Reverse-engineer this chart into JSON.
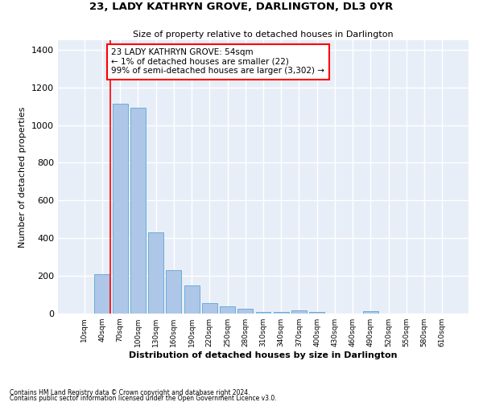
{
  "title": "23, LADY KATHRYN GROVE, DARLINGTON, DL3 0YR",
  "subtitle": "Size of property relative to detached houses in Darlington",
  "xlabel": "Distribution of detached houses by size in Darlington",
  "ylabel": "Number of detached properties",
  "bar_color": "#aec6e8",
  "bar_edge_color": "#6baed6",
  "bg_color": "#e8eef8",
  "grid_color": "#ffffff",
  "categories": [
    "10sqm",
    "40sqm",
    "70sqm",
    "100sqm",
    "130sqm",
    "160sqm",
    "190sqm",
    "220sqm",
    "250sqm",
    "280sqm",
    "310sqm",
    "340sqm",
    "370sqm",
    "400sqm",
    "430sqm",
    "460sqm",
    "490sqm",
    "520sqm",
    "550sqm",
    "580sqm",
    "610sqm"
  ],
  "values": [
    0,
    210,
    1115,
    1090,
    430,
    230,
    148,
    57,
    38,
    25,
    10,
    10,
    18,
    10,
    0,
    0,
    14,
    0,
    0,
    0,
    0
  ],
  "ylim": [
    0,
    1450
  ],
  "yticks": [
    0,
    200,
    400,
    600,
    800,
    1000,
    1200,
    1400
  ],
  "red_line_x": 1.47,
  "annotation_text": "23 LADY KATHRYN GROVE: 54sqm\n← 1% of detached houses are smaller (22)\n99% of semi-detached houses are larger (3,302) →",
  "footnote1": "Contains HM Land Registry data © Crown copyright and database right 2024.",
  "footnote2": "Contains public sector information licensed under the Open Government Licence v3.0."
}
